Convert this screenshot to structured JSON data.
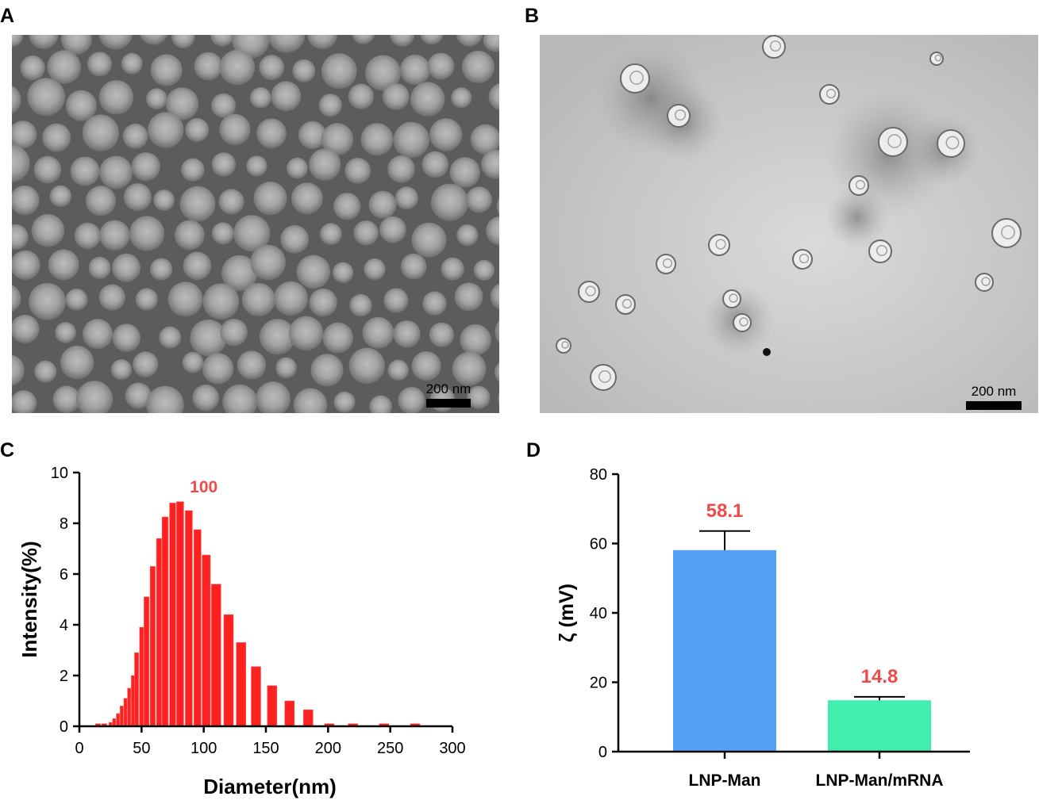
{
  "panels": {
    "a": {
      "letter": "A",
      "scale_label": "200 nm"
    },
    "b": {
      "letter": "B",
      "scale_label": "200 nm"
    },
    "c": {
      "letter": "C"
    },
    "d": {
      "letter": "D"
    }
  },
  "colors": {
    "histogram": "#ff2020",
    "annotation": "#f04a4a",
    "bar_lnp_man": "#55a0f5",
    "bar_lnp_man_mrna": "#40eeae"
  },
  "chart_data": [
    {
      "type": "bar",
      "panel": "C",
      "xlabel": "Diameter(nm)",
      "ylabel": "Intensity(%)",
      "xlim": [
        0,
        300
      ],
      "ylim": [
        0,
        10
      ],
      "xticks": [
        0,
        50,
        100,
        150,
        200,
        250,
        300
      ],
      "yticks": [
        0,
        2,
        4,
        6,
        8,
        10
      ],
      "annotation": {
        "text": "100",
        "x": 100,
        "y": 9.1
      },
      "x": [
        15,
        20,
        25,
        28,
        31,
        34,
        37,
        40,
        43,
        46,
        50,
        54,
        59,
        64,
        69,
        75,
        81,
        88,
        95,
        102,
        110,
        120,
        130,
        142,
        155,
        169,
        184,
        201,
        220,
        245,
        270
      ],
      "values": [
        0.1,
        0.1,
        0.15,
        0.3,
        0.5,
        0.8,
        1.1,
        1.5,
        2.0,
        2.9,
        3.9,
        5.1,
        6.3,
        7.4,
        8.25,
        8.8,
        8.85,
        8.5,
        7.75,
        6.75,
        5.6,
        4.4,
        3.3,
        2.35,
        1.6,
        1.0,
        0.65,
        0.1,
        0.1,
        0.1,
        0.1
      ]
    },
    {
      "type": "bar",
      "panel": "D",
      "categories": [
        "LNP-Man",
        "LNP-Man/mRNA"
      ],
      "values": [
        58.1,
        14.8
      ],
      "errors": [
        5.5,
        1.0
      ],
      "data_labels": [
        "58.1",
        "14.8"
      ],
      "ylabel": "ζ (mV)",
      "ylim": [
        0,
        80
      ],
      "yticks": [
        0,
        20,
        40,
        60,
        80
      ]
    }
  ]
}
